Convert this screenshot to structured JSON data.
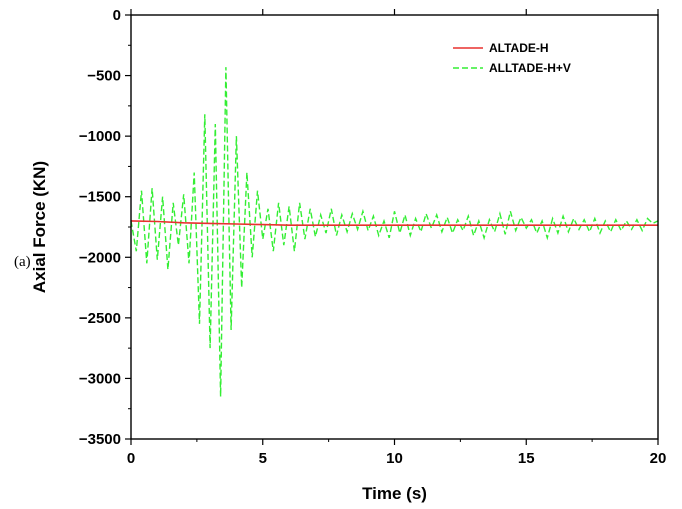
{
  "panel_label": "(a)",
  "chart_data": {
    "type": "line",
    "xlabel": "Time (s)",
    "ylabel": "Axial Force (KN)",
    "xlim": [
      0,
      20
    ],
    "ylim": [
      -3500,
      0
    ],
    "x_ticks": [
      0,
      5,
      10,
      15,
      20
    ],
    "y_ticks": [
      0,
      -500,
      -1000,
      -1500,
      -2000,
      -2500,
      -3000,
      -3500
    ],
    "x_tick_labels": [
      "0",
      "5",
      "10",
      "15",
      "20"
    ],
    "y_tick_labels": [
      "0",
      "−500",
      "−1000",
      "−1500",
      "−2000",
      "−2500",
      "−3000",
      "−3500"
    ],
    "grid": false,
    "legend_position": "top-right",
    "series": [
      {
        "name": "ALTADE-H",
        "color": "#e8312f",
        "style": "solid",
        "x": [
          0,
          1,
          2,
          3,
          4,
          5,
          6,
          7,
          8,
          9,
          10,
          11,
          12,
          13,
          14,
          15,
          16,
          17,
          18,
          19,
          20
        ],
        "values": [
          -1700,
          -1705,
          -1715,
          -1720,
          -1725,
          -1730,
          -1735,
          -1735,
          -1735,
          -1735,
          -1735,
          -1735,
          -1735,
          -1735,
          -1735,
          -1735,
          -1735,
          -1735,
          -1735,
          -1735,
          -1735
        ]
      },
      {
        "name": "ALLTADE-H+V",
        "color": "#33ee33",
        "style": "dashed",
        "x": [
          0,
          0.2,
          0.4,
          0.6,
          0.8,
          1.0,
          1.2,
          1.4,
          1.6,
          1.8,
          2.0,
          2.2,
          2.4,
          2.6,
          2.8,
          3.0,
          3.2,
          3.4,
          3.6,
          3.8,
          4.0,
          4.2,
          4.4,
          4.6,
          4.8,
          5.0,
          5.2,
          5.4,
          5.6,
          5.8,
          6.0,
          6.2,
          6.4,
          6.6,
          6.8,
          7.0,
          7.2,
          7.4,
          7.6,
          7.8,
          8.0,
          8.2,
          8.4,
          8.6,
          8.8,
          9.0,
          9.2,
          9.4,
          9.6,
          9.8,
          10.0,
          10.2,
          10.4,
          10.6,
          10.8,
          11.0,
          11.2,
          11.4,
          11.6,
          11.8,
          12.0,
          12.2,
          12.4,
          12.6,
          12.8,
          13.0,
          13.2,
          13.4,
          13.6,
          13.8,
          14.0,
          14.2,
          14.4,
          14.6,
          14.8,
          15.0,
          15.2,
          15.4,
          15.6,
          15.8,
          16.0,
          16.2,
          16.4,
          16.6,
          16.8,
          17.0,
          17.2,
          17.4,
          17.6,
          17.8,
          18.0,
          18.2,
          18.4,
          18.6,
          18.8,
          19.0,
          19.2,
          19.4,
          19.6,
          19.8,
          20.0
        ],
        "values": [
          -1700,
          -1950,
          -1450,
          -2050,
          -1430,
          -2020,
          -1500,
          -2100,
          -1550,
          -1900,
          -1480,
          -2050,
          -1300,
          -2550,
          -820,
          -2750,
          -900,
          -3150,
          -430,
          -2600,
          -1000,
          -2250,
          -1300,
          -2000,
          -1450,
          -1850,
          -1600,
          -1950,
          -1550,
          -1900,
          -1580,
          -1950,
          -1550,
          -1850,
          -1600,
          -1830,
          -1650,
          -1800,
          -1600,
          -1820,
          -1650,
          -1790,
          -1640,
          -1770,
          -1620,
          -1780,
          -1660,
          -1820,
          -1700,
          -1840,
          -1620,
          -1800,
          -1650,
          -1820,
          -1680,
          -1790,
          -1640,
          -1760,
          -1650,
          -1790,
          -1670,
          -1800,
          -1690,
          -1780,
          -1660,
          -1820,
          -1700,
          -1840,
          -1690,
          -1790,
          -1640,
          -1810,
          -1620,
          -1780,
          -1670,
          -1760,
          -1690,
          -1800,
          -1700,
          -1840,
          -1680,
          -1800,
          -1660,
          -1790,
          -1680,
          -1770,
          -1690,
          -1790,
          -1680,
          -1800,
          -1700,
          -1790,
          -1690,
          -1780,
          -1700,
          -1770,
          -1690,
          -1780,
          -1680,
          -1720,
          -1700
        ]
      }
    ]
  }
}
